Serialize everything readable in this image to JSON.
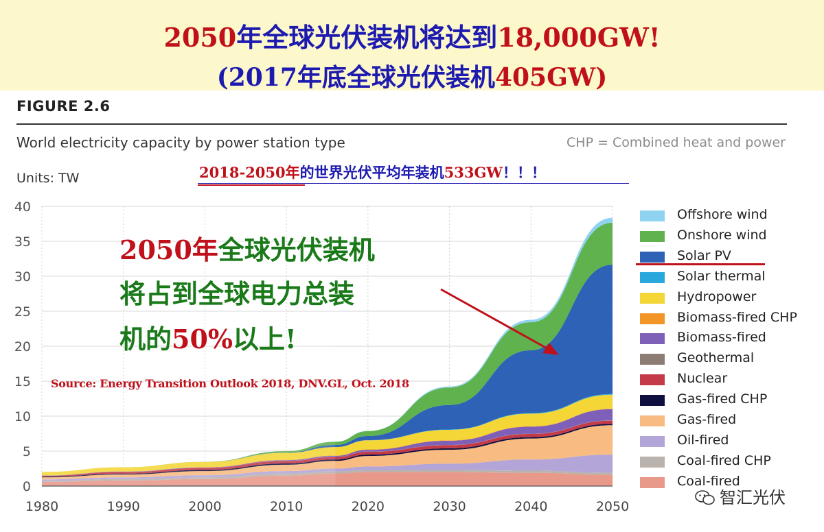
{
  "header": {
    "line1_a": "2050",
    "line1_b": "年全球光伏装机将达到",
    "line1_c": "18,000GW!",
    "line2_a": "(2017年底全球光伏装机",
    "line2_b": "405GW)"
  },
  "figure": {
    "label": "FIGURE 2.6",
    "subtitle": "World electricity capacity by power station type",
    "chp_note": "CHP = Combined heat and power",
    "units": "Units: TW"
  },
  "note533": {
    "part_a": "2018-2050年",
    "part_b": "的世界光伏平均年装机",
    "part_c": "533GW",
    "part_d": "！！！"
  },
  "annotation": {
    "line1_red": "2050年",
    "line1_green": "全球光伏装机",
    "line2": "将占到全球电力总装",
    "line3_a": "机的",
    "line3_b": "50%",
    "line3_c": "以上!"
  },
  "source": "Source: Energy Transition Outlook 2018, DNV.GL, Oct. 2018",
  "watermark": "智汇光伏",
  "colors": {
    "accent_red": "#c0101a",
    "title_blue": "#1d1ab0",
    "annotation_green": "#1a7a1a"
  },
  "chart_data": {
    "type": "area",
    "stacked": true,
    "title": "World electricity capacity by power station type",
    "ylabel": "Units: TW",
    "xlabel": "",
    "x": [
      1980,
      1990,
      2000,
      2010,
      2016,
      2020,
      2030,
      2040,
      2050
    ],
    "xticks": [
      1980,
      1990,
      2000,
      2010,
      2020,
      2030,
      2040,
      2050
    ],
    "ylim": [
      0,
      40
    ],
    "yticks": [
      0,
      5,
      10,
      15,
      20,
      25,
      30,
      35,
      40
    ],
    "grid": true,
    "legend_position": "right",
    "series": [
      {
        "name": "Coal-fired",
        "color": "#e8998a",
        "values": [
          0.6,
          0.8,
          1.0,
          1.5,
          1.8,
          2.0,
          2.0,
          1.9,
          1.6
        ]
      },
      {
        "name": "Coal-fired CHP",
        "color": "#b9b2ad",
        "values": [
          0.15,
          0.2,
          0.25,
          0.3,
          0.3,
          0.3,
          0.3,
          0.3,
          0.3
        ]
      },
      {
        "name": "Oil-fired",
        "color": "#b4a5d8",
        "values": [
          0.2,
          0.25,
          0.3,
          0.35,
          0.4,
          0.5,
          0.9,
          1.6,
          2.6
        ]
      },
      {
        "name": "Gas-fired",
        "color": "#f8bb82",
        "values": [
          0.3,
          0.4,
          0.6,
          0.9,
          1.1,
          1.5,
          2.0,
          3.0,
          4.2
        ]
      },
      {
        "name": "Gas-fired CHP",
        "color": "#101040",
        "values": [
          0.1,
          0.12,
          0.15,
          0.18,
          0.2,
          0.2,
          0.2,
          0.2,
          0.2
        ]
      },
      {
        "name": "Nuclear",
        "color": "#c43a48",
        "values": [
          0.12,
          0.25,
          0.3,
          0.35,
          0.35,
          0.4,
          0.45,
          0.45,
          0.45
        ]
      },
      {
        "name": "Geothermal",
        "color": "#8c7c74",
        "values": [
          0.02,
          0.02,
          0.02,
          0.02,
          0.02,
          0.03,
          0.03,
          0.04,
          0.05
        ]
      },
      {
        "name": "Biomass-fired",
        "color": "#7f60b8",
        "values": [
          0.02,
          0.03,
          0.05,
          0.1,
          0.15,
          0.25,
          0.6,
          1.0,
          1.6
        ]
      },
      {
        "name": "Biomass-fired CHP",
        "color": "#f39427",
        "values": [
          0.01,
          0.02,
          0.03,
          0.05,
          0.05,
          0.06,
          0.06,
          0.06,
          0.06
        ]
      },
      {
        "name": "Hydropower",
        "color": "#f4d637",
        "values": [
          0.5,
          0.6,
          0.75,
          1.0,
          1.2,
          1.3,
          1.5,
          1.8,
          2.0
        ]
      },
      {
        "name": "Solar thermal",
        "color": "#29a8dd",
        "values": [
          0,
          0,
          0,
          0,
          0.01,
          0.02,
          0.05,
          0.08,
          0.1
        ]
      },
      {
        "name": "Solar PV",
        "color": "#2e62b6",
        "values": [
          0,
          0,
          0,
          0.04,
          0.3,
          0.6,
          3.5,
          9.0,
          18.5
        ]
      },
      {
        "name": "Onshore wind",
        "color": "#5fb24e",
        "values": [
          0,
          0,
          0.02,
          0.2,
          0.45,
          0.7,
          2.5,
          4.0,
          6.0
        ]
      },
      {
        "name": "Offshore wind",
        "color": "#8fd3f1",
        "values": [
          0,
          0,
          0,
          0,
          0.01,
          0.03,
          0.15,
          0.35,
          0.7
        ]
      }
    ]
  }
}
